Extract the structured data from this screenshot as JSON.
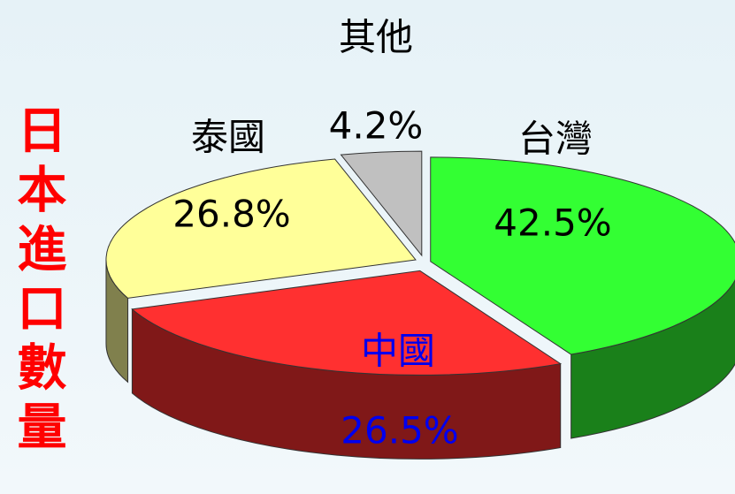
{
  "chart_data": {
    "type": "pie3d",
    "title": "日本進口數量",
    "labels": [
      "台灣",
      "中國",
      "泰國",
      "其他"
    ],
    "values": [
      42.5,
      26.5,
      26.8,
      4.2
    ],
    "value_labels": [
      "42.5%",
      "26.5%",
      "26.8%",
      "4.2%"
    ],
    "colors": [
      "#33ff33",
      "#ff3030",
      "#ffff99",
      "#c0c0c0"
    ],
    "label_colors": [
      "#000000",
      "#0000ee",
      "#000000",
      "#000000"
    ],
    "title_color": "#ff0000"
  }
}
